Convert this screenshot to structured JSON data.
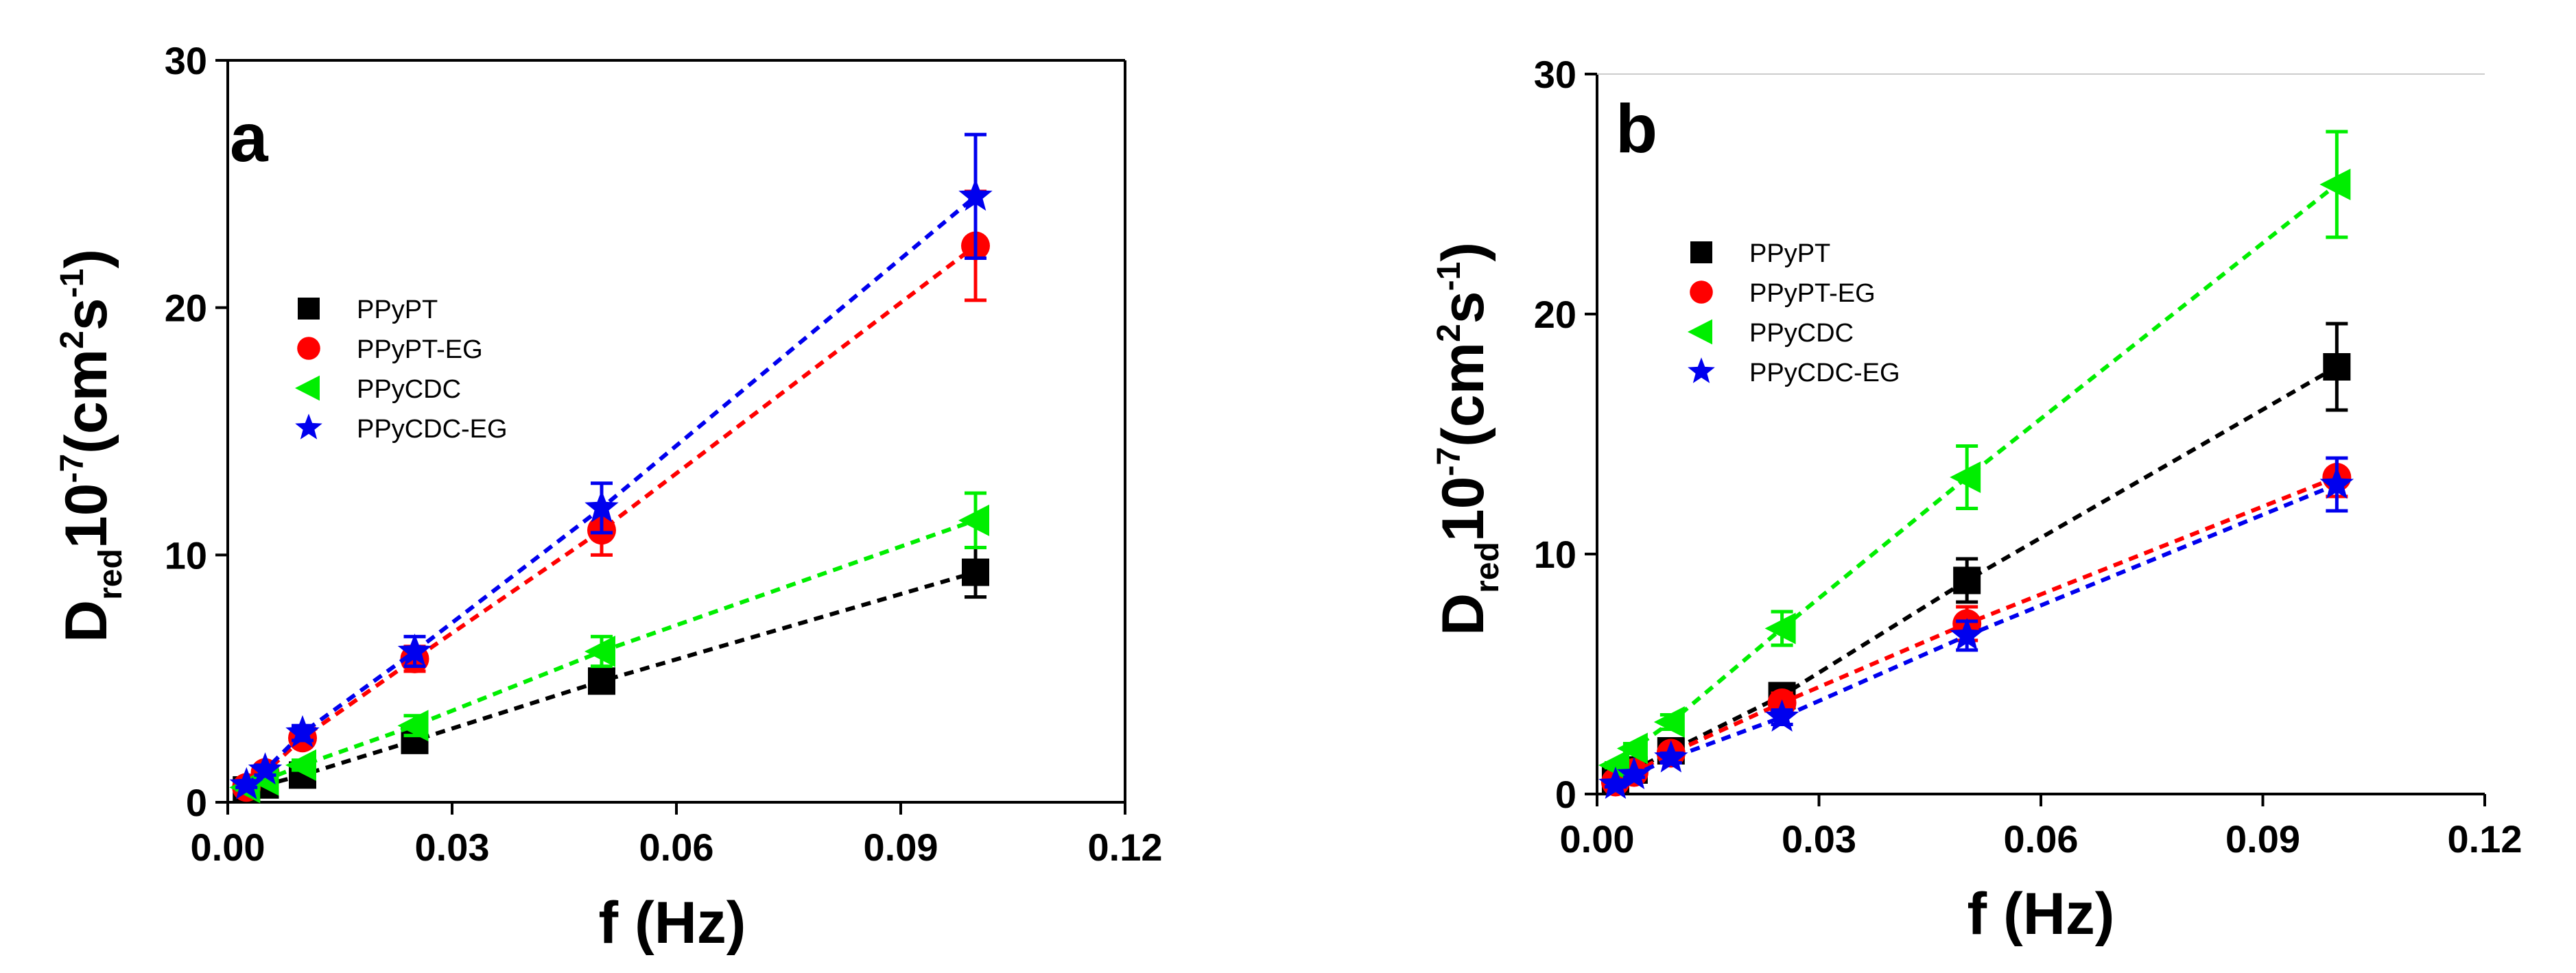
{
  "chart_data": [
    {
      "type": "scatter",
      "panel_label": "a",
      "xlabel": "f (Hz)",
      "ylabel_main": "D",
      "ylabel_sub": "red",
      "ylabel_rest": "10",
      "ylabel_exp": "-7",
      "ylabel_unit_open": "(cm",
      "ylabel_unit_sq": "2",
      "ylabel_unit_s": "s",
      "ylabel_unit_exp": "-1",
      "ylabel_unit_close": ")",
      "xlim": [
        0.0,
        0.12
      ],
      "ylim": [
        0,
        30
      ],
      "xticks": [
        "0.00",
        "0.03",
        "0.06",
        "0.09",
        "0.12"
      ],
      "yticks": [
        "0",
        "10",
        "20",
        "30"
      ],
      "xtick_values": [
        0.0,
        0.03,
        0.06,
        0.09,
        0.12
      ],
      "ytick_values": [
        0,
        10,
        20,
        30
      ],
      "legend_position": "center-left",
      "series": [
        {
          "name": "PPyPT",
          "color": "#000000",
          "marker": "square",
          "x": [
            0.0025,
            0.005,
            0.01,
            0.025,
            0.05,
            0.1
          ],
          "y": [
            0.5,
            0.7,
            1.1,
            2.5,
            4.9,
            9.3
          ],
          "err": [
            0.1,
            0.1,
            0.2,
            0.3,
            0.4,
            1.0
          ]
        },
        {
          "name": "PPyPT-EG",
          "color": "#ff0000",
          "marker": "circle",
          "x": [
            0.0025,
            0.005,
            0.01,
            0.025,
            0.05,
            0.1
          ],
          "y": [
            0.6,
            1.2,
            2.6,
            5.8,
            11.0,
            22.5
          ],
          "err": [
            0.1,
            0.2,
            0.3,
            0.5,
            1.0,
            2.2
          ]
        },
        {
          "name": "PPyCDC",
          "color": "#00ee00",
          "marker": "triangle-left",
          "x": [
            0.0025,
            0.005,
            0.01,
            0.025,
            0.05,
            0.1
          ],
          "y": [
            0.6,
            0.9,
            1.5,
            3.1,
            6.1,
            11.4
          ],
          "err": [
            0.1,
            0.1,
            0.2,
            0.4,
            0.6,
            1.1
          ]
        },
        {
          "name": "PPyCDC-EG",
          "color": "#0000ee",
          "marker": "star",
          "x": [
            0.0025,
            0.005,
            0.01,
            0.025,
            0.05,
            0.1
          ],
          "y": [
            0.7,
            1.3,
            2.8,
            6.1,
            11.9,
            24.5
          ],
          "err": [
            0.1,
            0.2,
            0.3,
            0.6,
            1.0,
            2.5
          ]
        }
      ]
    },
    {
      "type": "scatter",
      "panel_label": "b",
      "xlabel": "f (Hz)",
      "ylabel_main": "D",
      "ylabel_sub": "red",
      "ylabel_rest": "10",
      "ylabel_exp": "-7",
      "ylabel_unit_open": "(cm",
      "ylabel_unit_sq": "2",
      "ylabel_unit_s": "s",
      "ylabel_unit_exp": "-1",
      "ylabel_unit_close": ")",
      "xlim": [
        0.0,
        0.12
      ],
      "ylim": [
        0,
        30
      ],
      "xticks": [
        "0.00",
        "0.03",
        "0.06",
        "0.09",
        "0.12"
      ],
      "yticks": [
        "0",
        "10",
        "20",
        "30"
      ],
      "xtick_values": [
        0.0,
        0.03,
        0.06,
        0.09,
        0.12
      ],
      "ytick_values": [
        0,
        10,
        20,
        30
      ],
      "legend_position": "upper-left",
      "series": [
        {
          "name": "PPyPT",
          "color": "#000000",
          "marker": "square",
          "x": [
            0.0025,
            0.005,
            0.01,
            0.025,
            0.05,
            0.1
          ],
          "y": [
            0.6,
            1.0,
            1.8,
            4.1,
            8.9,
            17.8
          ],
          "err": [
            0.1,
            0.2,
            0.3,
            0.4,
            0.9,
            1.8
          ]
        },
        {
          "name": "PPyPT-EG",
          "color": "#ff0000",
          "marker": "circle",
          "x": [
            0.0025,
            0.005,
            0.01,
            0.025,
            0.05,
            0.1
          ],
          "y": [
            0.5,
            0.9,
            1.7,
            3.8,
            7.1,
            13.2
          ],
          "err": [
            0.1,
            0.1,
            0.2,
            0.4,
            0.7,
            0.8
          ]
        },
        {
          "name": "PPyCDC",
          "color": "#00ee00",
          "marker": "triangle-left",
          "x": [
            0.0025,
            0.005,
            0.01,
            0.025,
            0.05,
            0.1
          ],
          "y": [
            1.2,
            1.9,
            3.0,
            6.9,
            13.2,
            25.4
          ],
          "err": [
            0.1,
            0.2,
            0.3,
            0.7,
            1.3,
            2.2
          ]
        },
        {
          "name": "PPyCDC-EG",
          "color": "#0000ee",
          "marker": "star",
          "x": [
            0.0025,
            0.005,
            0.01,
            0.025,
            0.05,
            0.1
          ],
          "y": [
            0.4,
            0.8,
            1.5,
            3.2,
            6.6,
            12.9
          ],
          "err": [
            0.1,
            0.1,
            0.2,
            0.3,
            0.6,
            1.1
          ]
        }
      ]
    }
  ]
}
